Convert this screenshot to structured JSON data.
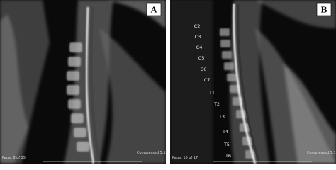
{
  "panels": [
    {
      "label": "A",
      "page": "Page: 8 of 15",
      "compression": "Compressed 5:1"
    },
    {
      "label": "B",
      "page": "Page: 10 of 17",
      "compression": "Compressed 5:1",
      "vertebrae": [
        "C2",
        "C3",
        "C4",
        "C5",
        "C6",
        "C7",
        "T1",
        "T2",
        "T3",
        "T4",
        "T5",
        "T6"
      ]
    }
  ]
}
